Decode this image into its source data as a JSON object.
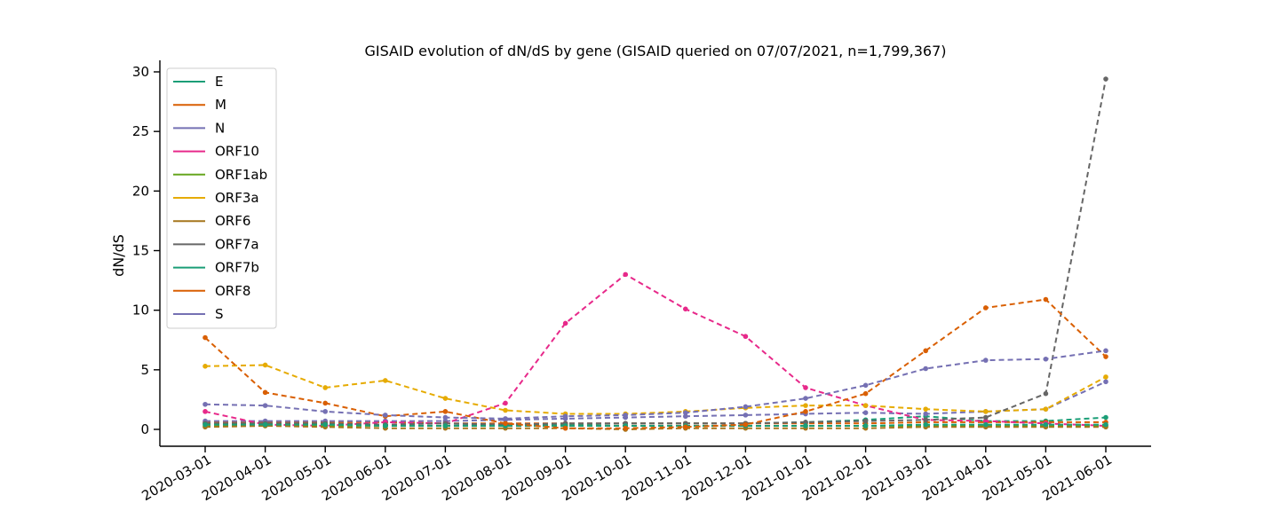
{
  "chart_data": {
    "type": "line",
    "title": "GISAID evolution of dN/dS by gene (GISAID queried on 07/07/2021, n=1,799,367)",
    "xlabel": "",
    "ylabel": "dN/dS",
    "ylim": [
      -1.4,
      30.9
    ],
    "yticks": [
      0,
      5,
      10,
      15,
      20,
      25,
      30
    ],
    "categories": [
      "2020-03-01",
      "2020-04-01",
      "2020-05-01",
      "2020-06-01",
      "2020-07-01",
      "2020-08-01",
      "2020-09-01",
      "2020-10-01",
      "2020-11-01",
      "2020-12-01",
      "2021-01-01",
      "2021-02-01",
      "2021-03-01",
      "2021-04-01",
      "2021-05-01",
      "2021-06-01"
    ],
    "legend_position": "upper-left",
    "grid": false,
    "series": [
      {
        "name": "E",
        "color": "#1b9e77",
        "values": [
          0.5,
          0.4,
          0.4,
          0.3,
          0.3,
          0.4,
          0.4,
          0.5,
          0.5,
          0.5,
          0.6,
          0.8,
          1.1,
          0.7,
          0.7,
          1.0
        ]
      },
      {
        "name": "M",
        "color": "#d95f02",
        "values": [
          0.6,
          0.6,
          0.6,
          0.6,
          0.5,
          0.5,
          0.5,
          0.5,
          0.5,
          0.5,
          0.5,
          0.5,
          0.6,
          0.6,
          0.6,
          0.6
        ]
      },
      {
        "name": "N",
        "color": "#7570b3",
        "values": [
          0.7,
          0.7,
          0.7,
          0.7,
          0.7,
          0.8,
          0.9,
          1.0,
          1.1,
          1.2,
          1.3,
          1.4,
          1.3,
          1.5,
          1.7,
          4.0
        ]
      },
      {
        "name": "ORF10",
        "color": "#e7298a",
        "values": [
          1.5,
          0.4,
          0.3,
          0.6,
          0.5,
          2.2,
          8.9,
          13.0,
          10.1,
          7.8,
          3.5,
          2.0,
          0.8,
          0.7,
          0.5,
          0.3
        ]
      },
      {
        "name": "ORF1ab",
        "color": "#66a61e",
        "values": [
          0.3,
          0.3,
          0.3,
          0.3,
          0.3,
          0.3,
          0.3,
          0.3,
          0.3,
          0.3,
          0.3,
          0.3,
          0.3,
          0.3,
          0.3,
          0.3
        ]
      },
      {
        "name": "ORF3a",
        "color": "#e6ab02",
        "values": [
          5.3,
          5.4,
          3.5,
          4.1,
          2.6,
          1.6,
          1.3,
          1.3,
          1.5,
          1.8,
          2.0,
          2.0,
          1.7,
          1.5,
          1.7,
          4.4
        ]
      },
      {
        "name": "ORF6",
        "color": "#a6761d",
        "values": [
          0.2,
          0.3,
          0.2,
          0.1,
          0.1,
          0.1,
          0.1,
          0.0,
          0.1,
          0.1,
          0.1,
          0.1,
          0.2,
          0.2,
          0.2,
          0.2
        ]
      },
      {
        "name": "ORF7a",
        "color": "#666666",
        "values": [
          0.5,
          0.5,
          0.5,
          0.4,
          0.5,
          0.4,
          0.5,
          0.5,
          0.5,
          0.5,
          0.6,
          0.7,
          0.8,
          1.0,
          3.0,
          29.4
        ]
      },
      {
        "name": "ORF7b",
        "color": "#1b9e77",
        "values": [
          0.4,
          0.4,
          0.4,
          0.3,
          0.3,
          0.3,
          0.3,
          0.3,
          0.3,
          0.3,
          0.3,
          0.3,
          0.4,
          0.4,
          0.4,
          0.4
        ]
      },
      {
        "name": "ORF8",
        "color": "#d95f02",
        "values": [
          7.7,
          3.1,
          2.2,
          1.1,
          1.5,
          0.5,
          0.1,
          0.1,
          0.2,
          0.4,
          1.5,
          3.0,
          6.6,
          10.2,
          10.9,
          6.1
        ]
      },
      {
        "name": "S",
        "color": "#7570b3",
        "values": [
          2.1,
          2.0,
          1.5,
          1.2,
          1.0,
          0.9,
          1.1,
          1.2,
          1.4,
          1.9,
          2.6,
          3.7,
          5.1,
          5.8,
          5.9,
          6.6
        ]
      }
    ]
  }
}
